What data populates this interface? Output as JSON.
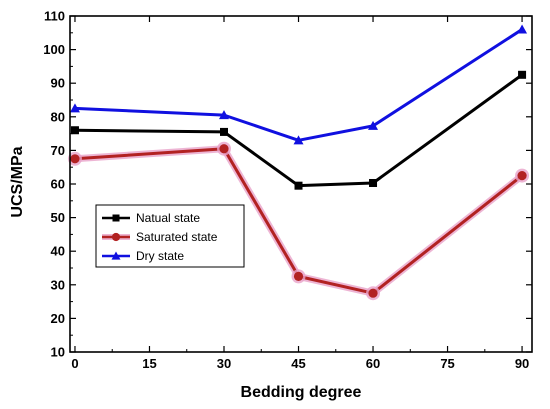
{
  "chart_data": {
    "type": "line",
    "xlabel": "Bedding degree",
    "ylabel": "UCS/MPa",
    "xlim": [
      -1,
      92
    ],
    "ylim": [
      10,
      110
    ],
    "x_ticks": [
      0,
      15,
      30,
      45,
      60,
      75,
      90
    ],
    "y_ticks": [
      10,
      20,
      30,
      40,
      50,
      60,
      70,
      80,
      90,
      100,
      110
    ],
    "grid": false,
    "legend_position": "middle-left",
    "x": [
      0,
      30,
      45,
      60,
      90
    ],
    "series": [
      {
        "name": "Natual state",
        "values": [
          76,
          75.5,
          59.5,
          60.3,
          92.5
        ],
        "color": "#000000",
        "marker": "square"
      },
      {
        "name": "Saturated state",
        "values": [
          67.5,
          70.5,
          32.5,
          27.5,
          62.5
        ],
        "color": "#b22222",
        "marker": "circle",
        "glow": "#e9a3c9"
      },
      {
        "name": "Dry state",
        "values": [
          82.5,
          80.5,
          73,
          77.3,
          106
        ],
        "color": "#1010e0",
        "marker": "triangle"
      }
    ]
  }
}
